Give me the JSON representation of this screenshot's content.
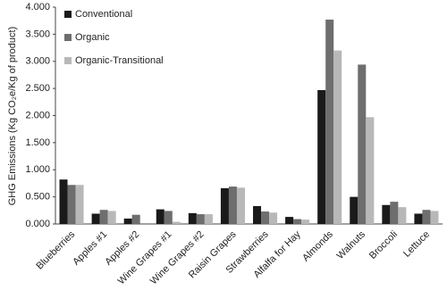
{
  "chart_data": {
    "type": "bar",
    "ylabel": "GHG Emissions (Kg CO₂e/Kg of product)",
    "categories": [
      "Blueberries",
      "Apples #1",
      "Apples #2",
      "Wine Grapes #1",
      "Wine Grapes #2",
      "Raisin Grapes",
      "Strawberries",
      "Alfalfa for Hay",
      "Almonds",
      "Walnuts",
      "Broccoli",
      "Lettuce"
    ],
    "series": [
      {
        "name": "Conventional",
        "color": "#1a1a1a",
        "values": [
          0.82,
          0.19,
          0.1,
          0.27,
          0.2,
          0.66,
          0.33,
          0.13,
          2.47,
          0.5,
          0.35,
          0.19
        ]
      },
      {
        "name": "Organic",
        "color": "#6e6e6e",
        "values": [
          0.72,
          0.26,
          0.17,
          0.24,
          0.18,
          0.69,
          0.23,
          0.09,
          3.77,
          2.94,
          0.41,
          0.26
        ]
      },
      {
        "name": "Organic-Transitional",
        "color": "#b8b8b8",
        "values": [
          0.72,
          0.24,
          0.0,
          0.04,
          0.18,
          0.67,
          0.21,
          0.08,
          3.2,
          1.97,
          0.31,
          0.24
        ]
      }
    ],
    "ylim": [
      0,
      4
    ],
    "yticks": [
      {
        "value": 0,
        "label": "0.000"
      },
      {
        "value": 0.5,
        "label": "0.500"
      },
      {
        "value": 1,
        "label": "1.000"
      },
      {
        "value": 1.5,
        "label": "1.500"
      },
      {
        "value": 2,
        "label": "2.000"
      },
      {
        "value": 2.5,
        "label": "2.500"
      },
      {
        "value": 3,
        "label": "3.000"
      },
      {
        "value": 3.5,
        "label": "3.500"
      },
      {
        "value": 4,
        "label": "4.000"
      }
    ],
    "legend": "upper-left"
  }
}
